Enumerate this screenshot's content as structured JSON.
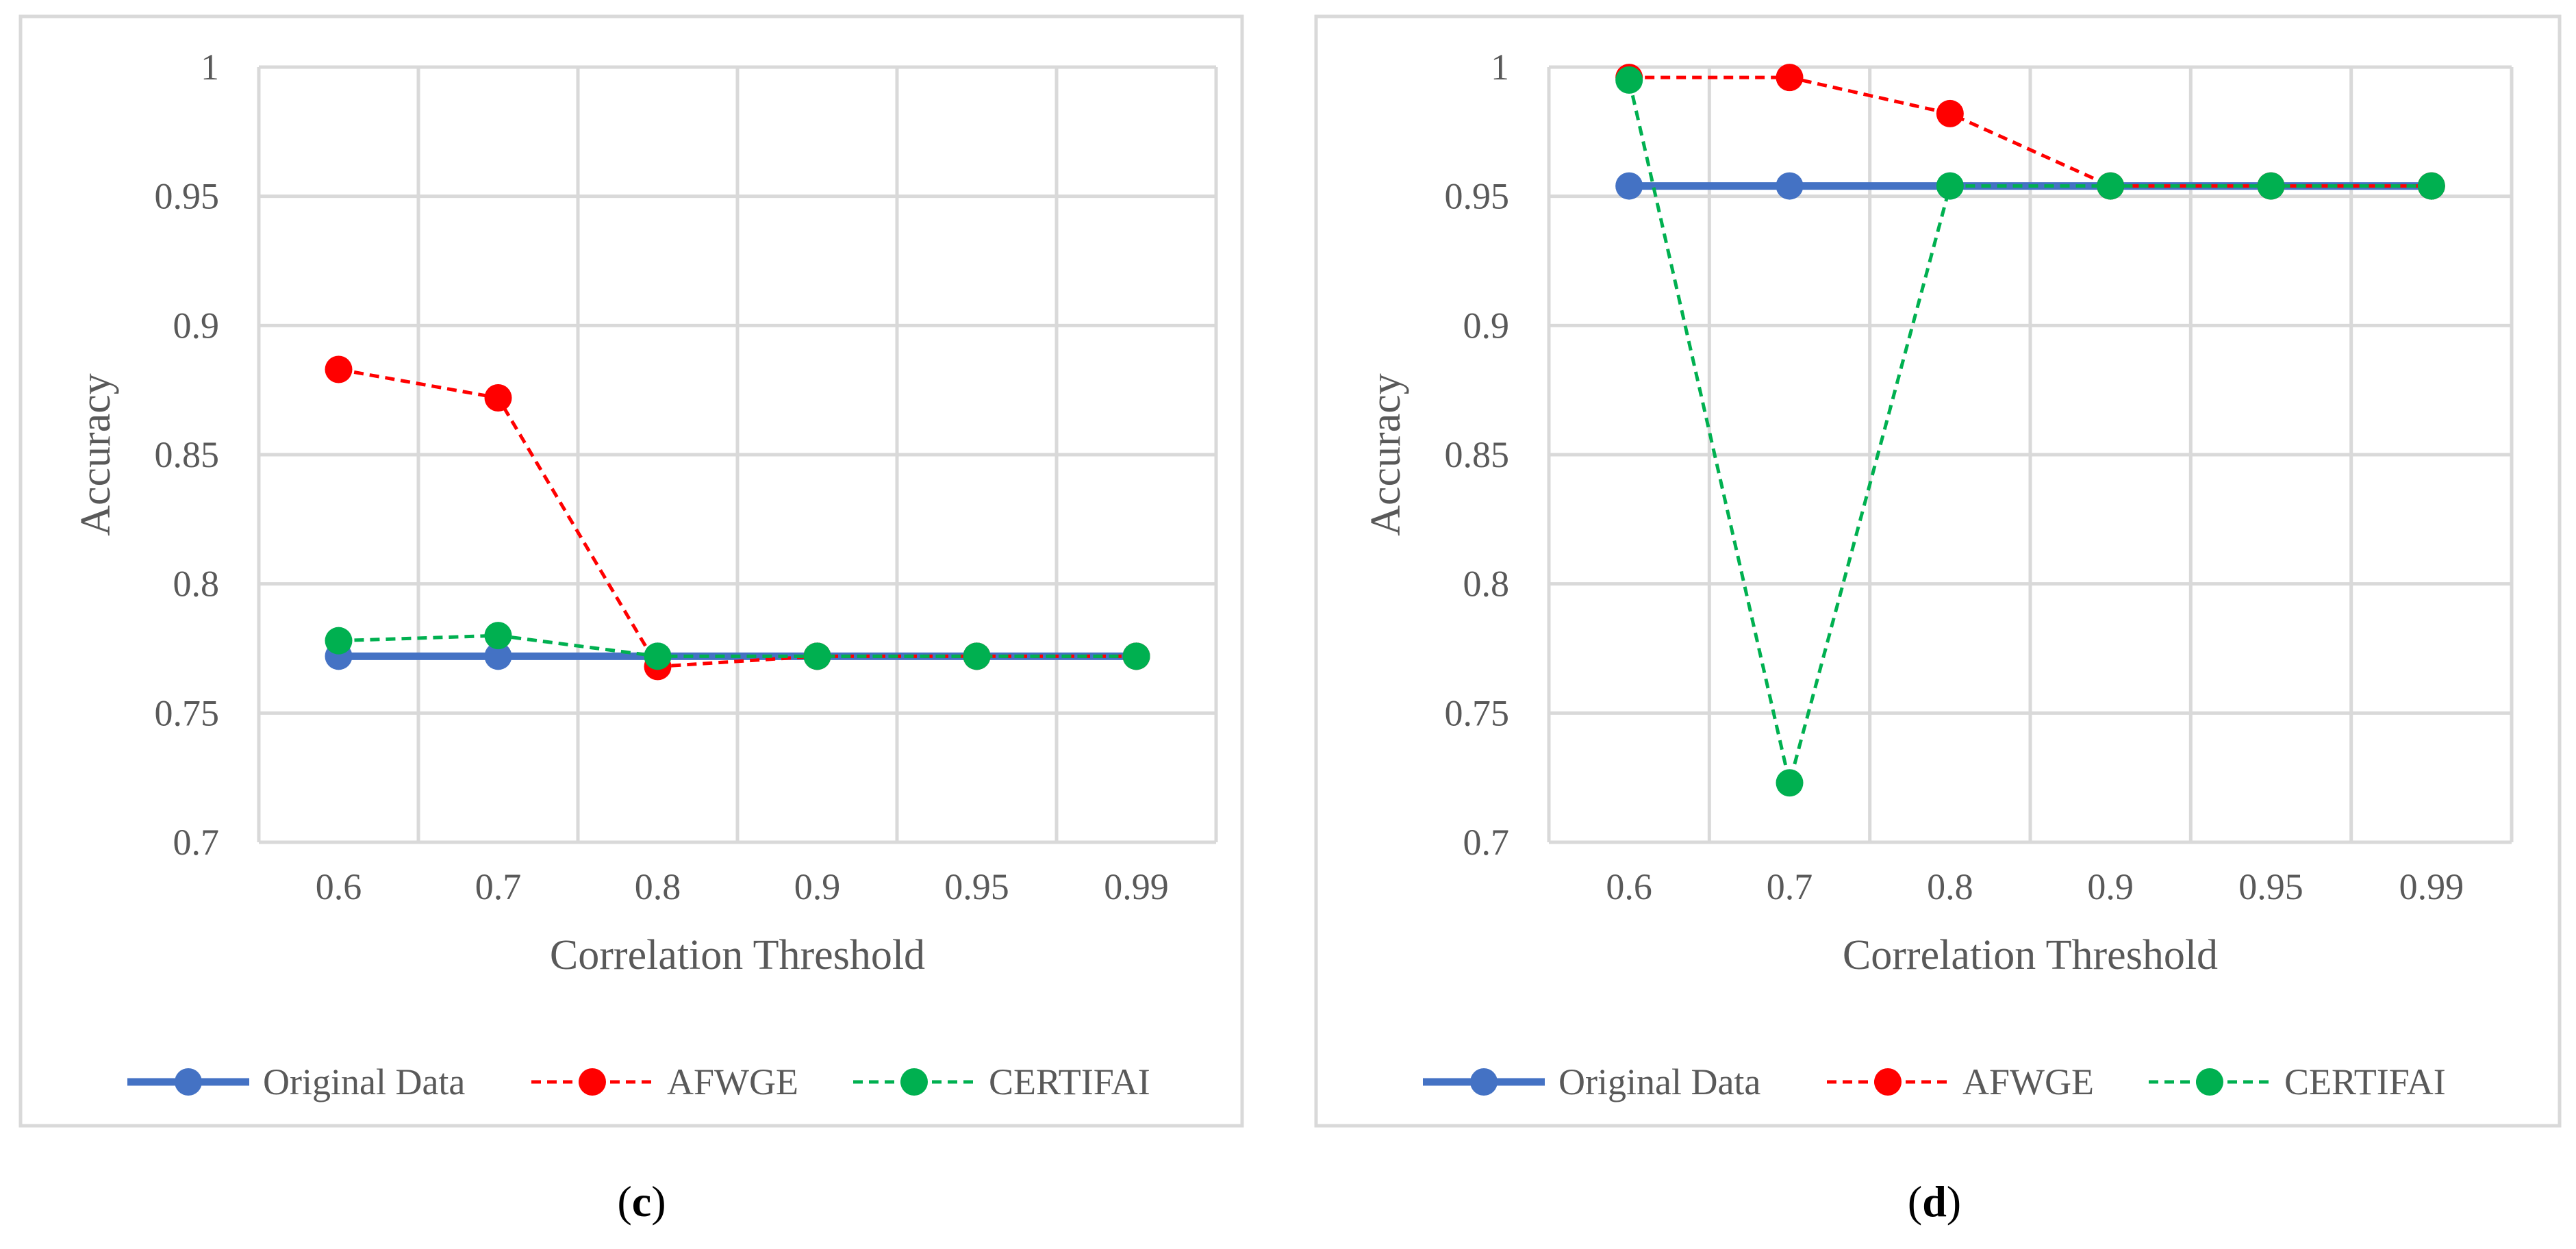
{
  "colors": {
    "original": "#4472C4",
    "afwge": "#FF0000",
    "certifai": "#00B050",
    "grid": "#D9D9D9",
    "frame": "#D9D9D9"
  },
  "chart_data": [
    {
      "type": "line",
      "panel": "c",
      "caption_letter": "c",
      "caption": "(c)",
      "xlabel": "Correlation Threshold",
      "ylabel": "Accuracy",
      "categories": [
        "0.6",
        "0.7",
        "0.8",
        "0.9",
        "0.95",
        "0.99"
      ],
      "ylim": [
        0.7,
        1
      ],
      "yticks": [
        "0.7",
        "0.75",
        "0.8",
        "0.85",
        "0.9",
        "0.95",
        "1"
      ],
      "grid": true,
      "legend_position": "bottom",
      "series": [
        {
          "name": "Original Data",
          "style": "solid",
          "values": [
            0.772,
            0.772,
            0.772,
            0.772,
            0.772,
            0.772
          ]
        },
        {
          "name": "AFWGE",
          "style": "dashed",
          "values": [
            0.883,
            0.872,
            0.768,
            0.772,
            0.772,
            0.772
          ]
        },
        {
          "name": "CERTIFAI",
          "style": "dashed",
          "values": [
            0.778,
            0.78,
            0.772,
            0.772,
            0.772,
            0.772
          ]
        }
      ]
    },
    {
      "type": "line",
      "panel": "d",
      "caption_letter": "d",
      "caption": "(d)",
      "xlabel": "Correlation Threshold",
      "ylabel": "Accuracy",
      "categories": [
        "0.6",
        "0.7",
        "0.8",
        "0.9",
        "0.95",
        "0.99"
      ],
      "ylim": [
        0.7,
        1
      ],
      "yticks": [
        "0.7",
        "0.75",
        "0.8",
        "0.85",
        "0.9",
        "0.95",
        "1"
      ],
      "grid": true,
      "legend_position": "bottom",
      "series": [
        {
          "name": "Original Data",
          "style": "solid",
          "values": [
            0.954,
            0.954,
            0.954,
            0.954,
            0.954,
            0.954
          ]
        },
        {
          "name": "AFWGE",
          "style": "dashed",
          "values": [
            0.996,
            0.996,
            0.982,
            0.954,
            0.954,
            0.954
          ]
        },
        {
          "name": "CERTIFAI",
          "style": "dashed",
          "values": [
            0.995,
            0.723,
            0.954,
            0.954,
            0.954,
            0.954
          ]
        }
      ]
    }
  ]
}
